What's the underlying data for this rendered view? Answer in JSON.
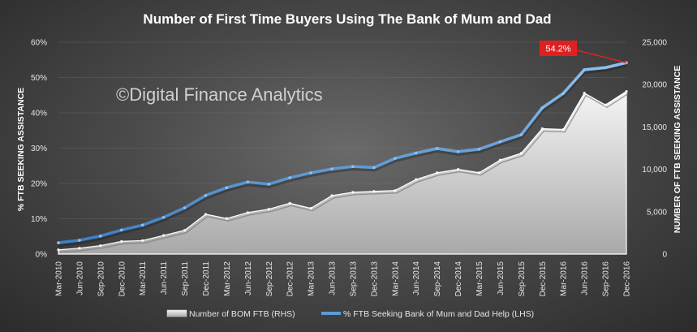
{
  "chart_data": {
    "type": "line",
    "title": "Number of First Time Buyers Using The Bank of Mum and Dad",
    "watermark": "©Digital Finance Analytics",
    "categories": [
      "Mar-2010",
      "Jun-2010",
      "Sep-2010",
      "Dec-2010",
      "Mar-2011",
      "Jun-2011",
      "Sep-2011",
      "Dec-2011",
      "Mar-2012",
      "Jun-2012",
      "Sep-2012",
      "Dec-2012",
      "Mar-2013",
      "Jun-2013",
      "Sep-2013",
      "Dec-2013",
      "Mar-2014",
      "Jun-2014",
      "Sep-2014",
      "Dec-2014",
      "Mar-2015",
      "Jun-2015",
      "Sep-2015",
      "Dec-2015",
      "Mar-2016",
      "Jun-2016",
      "Sep-2016",
      "Dec-2016"
    ],
    "y_left": {
      "label": "% FTB SEEKING ASSISTANCE",
      "ylim": [
        0,
        60
      ],
      "ticks": [
        "0%",
        "10%",
        "20%",
        "30%",
        "40%",
        "50%",
        "60%"
      ]
    },
    "y_right": {
      "label": "NUMBER OF FTB SEEKING ASSISTANCE",
      "ylim": [
        0,
        25000
      ],
      "ticks": [
        "0",
        "5,000",
        "10,000",
        "15,000",
        "20,000",
        "25,000"
      ]
    },
    "series": [
      {
        "name": "Number of BOM FTB (RHS)",
        "type": "area",
        "axis": "right",
        "color": "#c8c8c8",
        "values": [
          500,
          700,
          1000,
          1500,
          1600,
          2200,
          2800,
          4700,
          4200,
          4900,
          5300,
          6000,
          5400,
          6900,
          7300,
          7400,
          7500,
          8800,
          9600,
          10000,
          9600,
          11100,
          11900,
          14800,
          14700,
          19000,
          17600,
          19200
        ]
      },
      {
        "name": "% FTB Seeking Bank of Mum and Dad Help (LHS)",
        "type": "line",
        "axis": "left",
        "color": "#5b9bd5",
        "values": [
          3.2,
          3.9,
          5.1,
          6.8,
          8.2,
          10.4,
          13.1,
          16.6,
          18.8,
          20.4,
          19.8,
          21.6,
          23.0,
          24.1,
          24.8,
          24.5,
          27.1,
          28.6,
          29.9,
          29.0,
          29.7,
          31.8,
          33.8,
          41.4,
          45.5,
          52.2,
          52.8,
          54.2
        ]
      }
    ],
    "annotation": {
      "text": "54.2%",
      "color": "#e02020"
    },
    "legend": {
      "position": "bottom"
    },
    "grid": true
  }
}
